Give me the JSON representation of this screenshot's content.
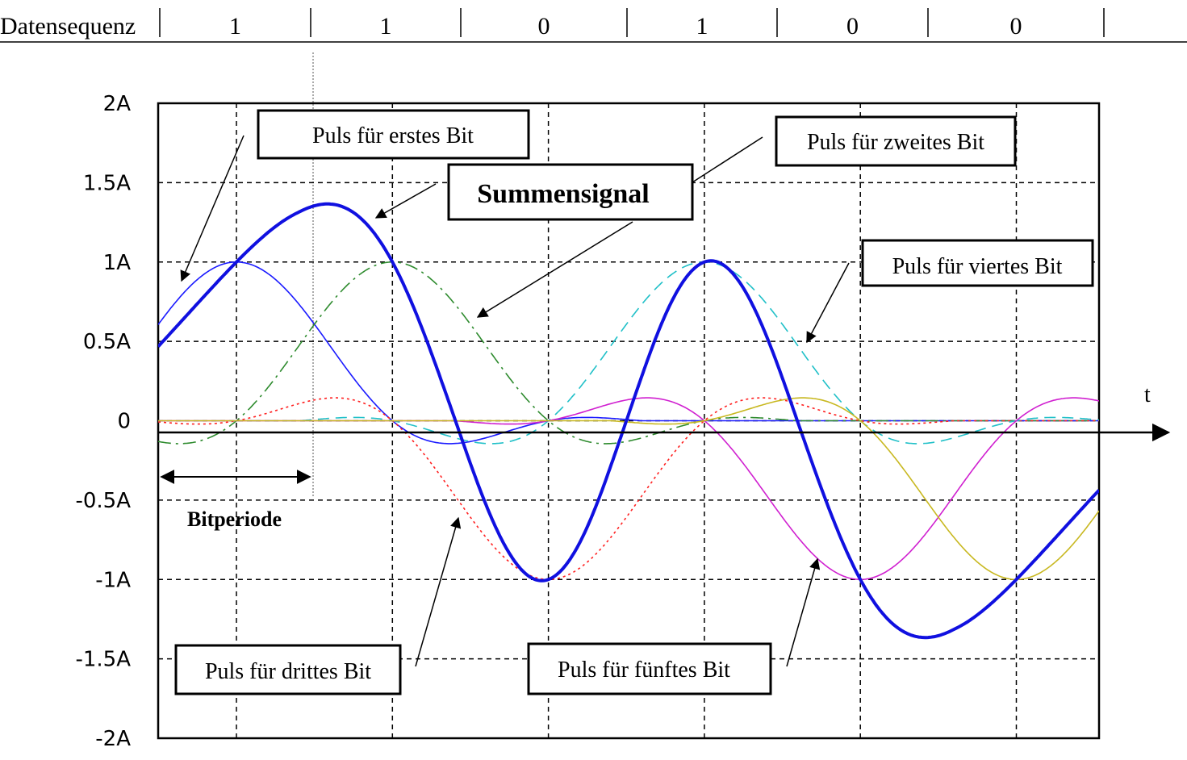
{
  "sequence": {
    "label": "Datensequenz",
    "bits": [
      "1",
      "1",
      "0",
      "1",
      "0",
      "0"
    ]
  },
  "chart_data": {
    "type": "line",
    "xlabel": "t",
    "ylabel": "",
    "ylim": [
      -2,
      2
    ],
    "y_ticks": [
      "2A",
      "1.5A",
      "1A",
      "0.5A",
      "0",
      "-0.5A",
      "-1A",
      "-1.5A",
      "-2A"
    ],
    "x_range_bitperiods": [
      -0.5,
      5.5
    ],
    "grid": true,
    "pulse_centers_bitperiods": [
      0,
      1,
      2,
      3,
      4,
      5
    ],
    "series": [
      {
        "bit": 0,
        "amplitude": 1,
        "color": "#1a1aff",
        "style": "solid"
      },
      {
        "bit": 1,
        "amplitude": 1,
        "color": "#2e8b2e",
        "style": "dashdot"
      },
      {
        "bit": 2,
        "amplitude": -1,
        "color": "#ff2020",
        "style": "dotted"
      },
      {
        "bit": 3,
        "amplitude": 1,
        "color": "#20c0c8",
        "style": "dashed"
      },
      {
        "bit": 4,
        "amplitude": -1,
        "color": "#d020d0",
        "style": "solid"
      },
      {
        "bit": 5,
        "amplitude": -1,
        "color": "#c8b820",
        "style": "solid"
      },
      {
        "name": "Summensignal",
        "color": "#1010e0",
        "style": "bold",
        "role": "sum"
      }
    ],
    "annotations": {
      "first": "Puls für erstes Bit",
      "second": "Puls für zweites Bit",
      "third": "Puls für drittes Bit",
      "fourth": "Puls für viertes Bit",
      "fifth": "Puls für fünftes Bit",
      "sum": "Summensignal",
      "bitperiod": "Bitperiode"
    }
  }
}
